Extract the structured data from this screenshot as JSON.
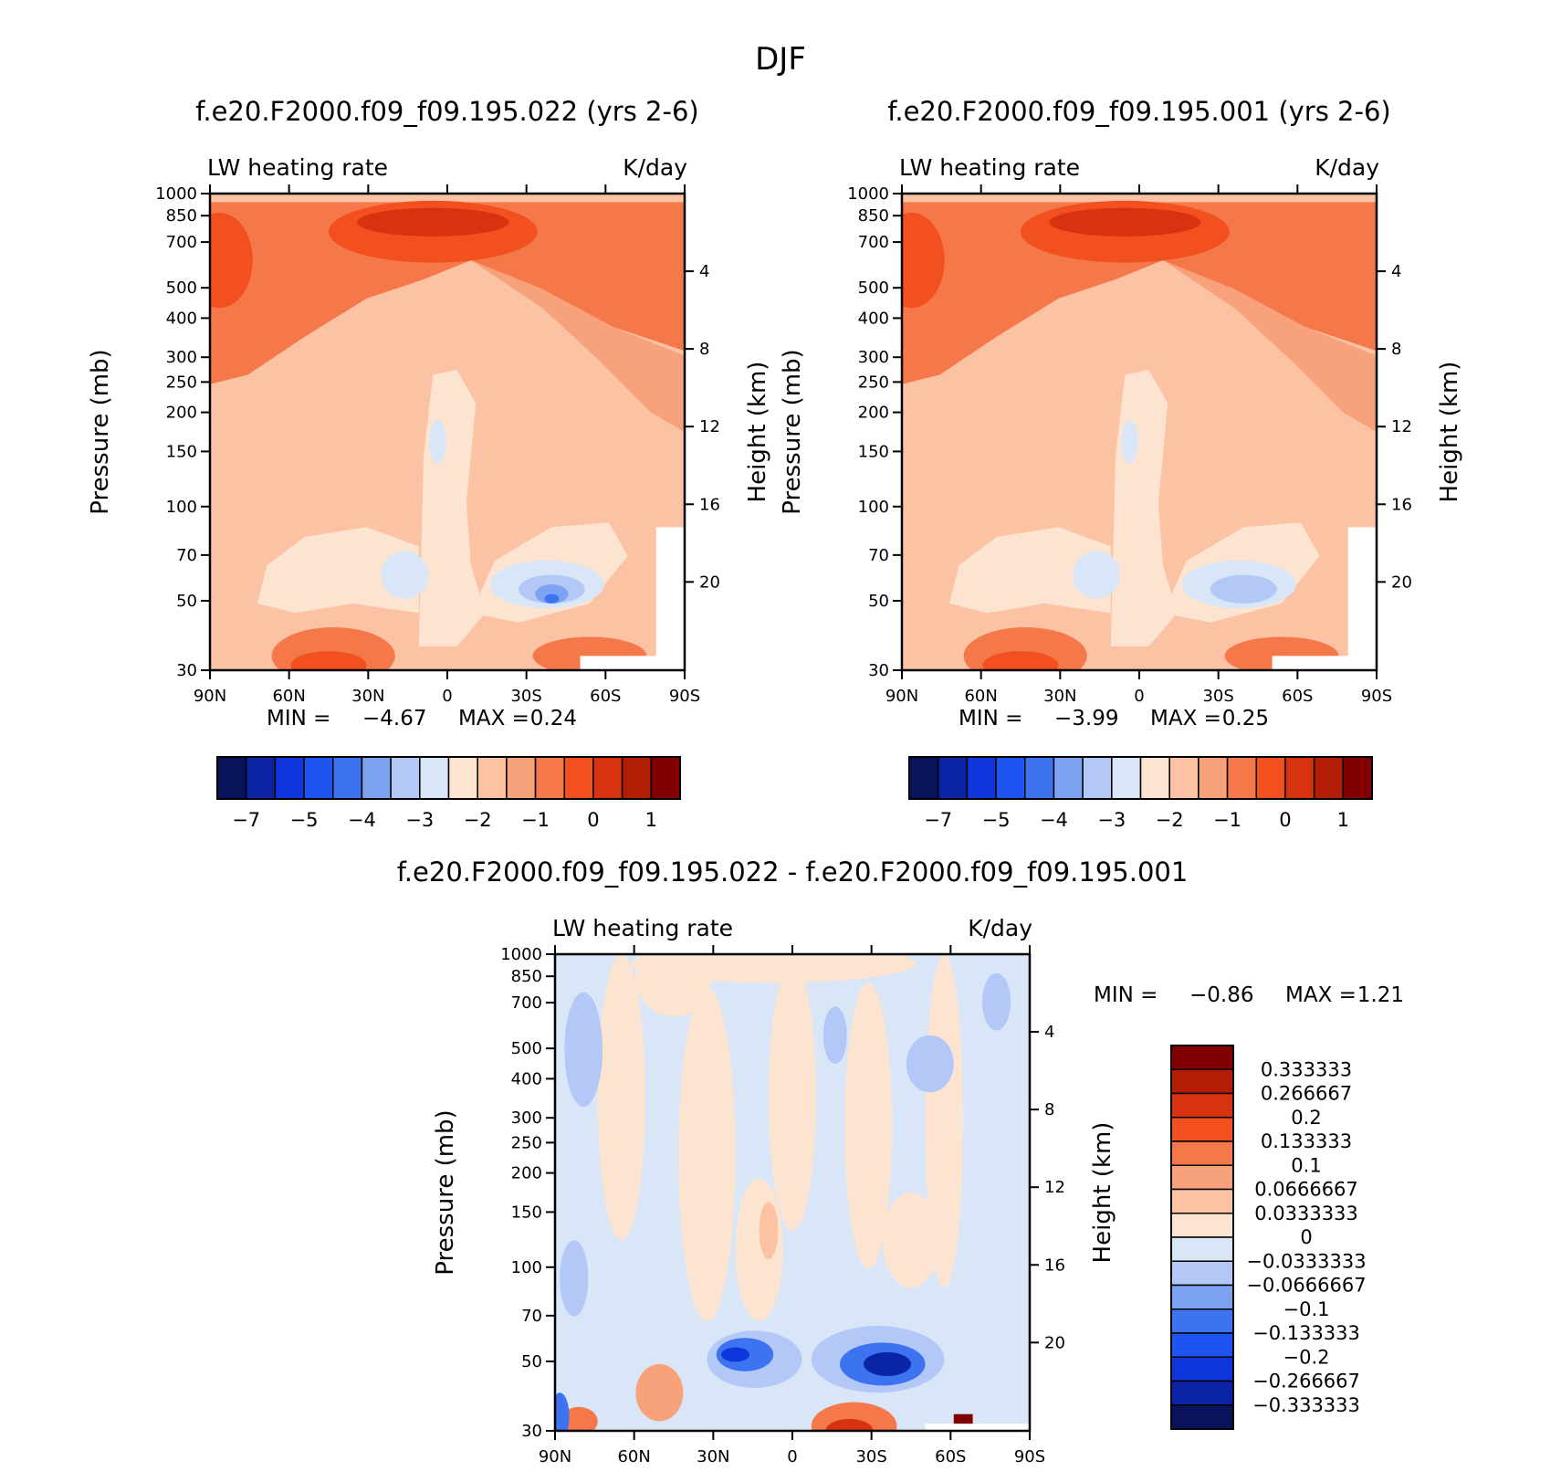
{
  "figure_title": "DJF",
  "colors": {
    "neg": [
      "#08135a",
      "#0b24a6",
      "#0d36dc",
      "#1e54f0",
      "#3d73f0",
      "#7ea2f2",
      "#b3c8f6",
      "#d8e6f8"
    ],
    "pos": [
      "#fde4d0",
      "#fbc3a4",
      "#f8a27c",
      "#f5784a",
      "#f2501f",
      "#d83310",
      "#b31d05",
      "#830000"
    ]
  },
  "chart_data": [
    {
      "type": "contour",
      "id": "p1",
      "title": "f.e20.F2000.f09_f09.195.022 (yrs 2-6)",
      "left_label": "LW heating rate",
      "right_label": "K/day",
      "ylabel": "Pressure (mb)",
      "ylabel2": "Height (km)",
      "x_ticks": [
        "90N",
        "60N",
        "30N",
        "0",
        "30S",
        "60S",
        "90S"
      ],
      "x_values": [
        90,
        60,
        30,
        0,
        -30,
        -60,
        -90
      ],
      "xlim": [
        90,
        -90
      ],
      "y_ticks": [
        30,
        50,
        70,
        100,
        150,
        200,
        250,
        300,
        400,
        500,
        700,
        850,
        1000
      ],
      "ylim": [
        1000,
        30
      ],
      "y2_ticks": [
        20,
        16,
        12,
        8,
        4
      ],
      "min_label": "MIN =",
      "min_value": "-4.67",
      "max_label": "MAX =",
      "max_value": "0.24",
      "colorbar_labels": [
        "-7",
        "-5",
        "-4",
        "-3",
        "-2",
        "-1",
        "0",
        "1"
      ],
      "colorbar_levels": 16
    },
    {
      "type": "contour",
      "id": "p2",
      "title": "f.e20.F2000.f09_f09.195.001 (yrs 2-6)",
      "left_label": "LW heating rate",
      "right_label": "K/day",
      "ylabel": "Pressure (mb)",
      "ylabel2": "Height (km)",
      "x_ticks": [
        "90N",
        "60N",
        "30N",
        "0",
        "30S",
        "60S",
        "90S"
      ],
      "x_values": [
        90,
        60,
        30,
        0,
        -30,
        -60,
        -90
      ],
      "xlim": [
        90,
        -90
      ],
      "y_ticks": [
        30,
        50,
        70,
        100,
        150,
        200,
        250,
        300,
        400,
        500,
        700,
        850,
        1000
      ],
      "ylim": [
        1000,
        30
      ],
      "y2_ticks": [
        20,
        16,
        12,
        8,
        4
      ],
      "min_label": "MIN =",
      "min_value": "-3.99",
      "max_label": "MAX =",
      "max_value": "0.25",
      "colorbar_labels": [
        "-7",
        "-5",
        "-4",
        "-3",
        "-2",
        "-1",
        "0",
        "1"
      ],
      "colorbar_levels": 16
    },
    {
      "type": "contour",
      "id": "p3",
      "title": "f.e20.F2000.f09_f09.195.022 - f.e20.F2000.f09_f09.195.001",
      "left_label": "LW heating rate",
      "right_label": "K/day",
      "ylabel": "Pressure (mb)",
      "ylabel2": "Height (km)",
      "x_ticks": [
        "90N",
        "60N",
        "30N",
        "0",
        "30S",
        "60S",
        "90S"
      ],
      "x_values": [
        90,
        60,
        30,
        0,
        -30,
        -60,
        -90
      ],
      "xlim": [
        90,
        -90
      ],
      "y_ticks": [
        30,
        50,
        70,
        100,
        150,
        200,
        250,
        300,
        400,
        500,
        700,
        850,
        1000
      ],
      "ylim": [
        1000,
        30
      ],
      "y2_ticks": [
        20,
        16,
        12,
        8,
        4
      ],
      "min_label": "MIN =",
      "min_value": "-0.86",
      "max_label": "MAX =",
      "max_value": "1.21",
      "colorbar_labels": [
        "0.333333",
        "0.266667",
        "0.2",
        "0.133333",
        "0.1",
        "0.0666667",
        "0.0333333",
        "0",
        "-0.0333333",
        "-0.0666667",
        "-0.1",
        "-0.133333",
        "-0.2",
        "-0.266667",
        "-0.333333"
      ],
      "colorbar_levels": 16
    }
  ]
}
